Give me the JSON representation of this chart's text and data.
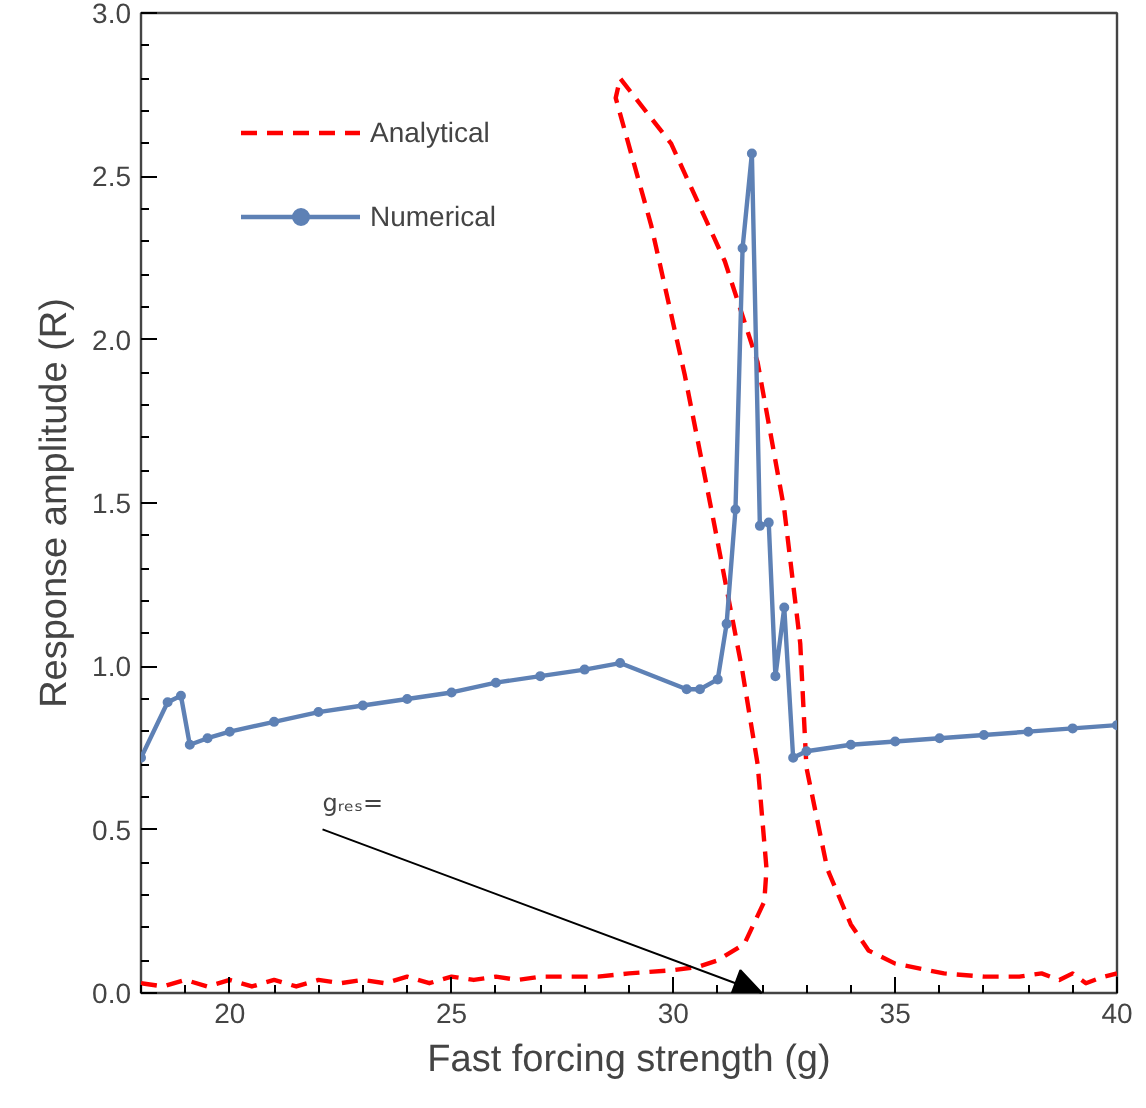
{
  "chart_data": {
    "type": "line",
    "xlabel": "Fast forcing strength (g)",
    "ylabel": "Response amplitude (R)",
    "xlim": [
      18,
      40
    ],
    "ylim": [
      0,
      3.0
    ],
    "xticks": [
      20,
      25,
      30,
      35,
      40
    ],
    "yticks": [
      {
        "value": 0,
        "label": "0.0"
      },
      0.5,
      {
        "value": 1,
        "label": "1.0"
      },
      1.5,
      {
        "value": 2,
        "label": "2.0"
      },
      2.5,
      {
        "value": 3,
        "label": "3.0"
      }
    ],
    "grid": false,
    "legend": "top left",
    "annotations": [
      "gᵣₑₛ="
    ],
    "series": [
      {
        "name": "Analytical",
        "color": "#ff0000",
        "line_style": "dashed",
        "marker": "none",
        "x": [
          18,
          18.5,
          19,
          19.5,
          20,
          20.5,
          21,
          21.5,
          22,
          22.5,
          23,
          23.5,
          24,
          24.5,
          25,
          25.5,
          26,
          26.5,
          27,
          27.5,
          28,
          28.3,
          29,
          30,
          30.56,
          31,
          31.6,
          32.05,
          32.1,
          31.9,
          31.55,
          30.9,
          30.26,
          29.5,
          28.7,
          28.8,
          29.95,
          31.16,
          31.9,
          32.5,
          32.86,
          33.0,
          33.47,
          34,
          34.4,
          35,
          36.1,
          37,
          37.8,
          38.3,
          38.7,
          39,
          39.3,
          39.7,
          40
        ],
        "values": [
          0.03,
          0.02,
          0.04,
          0.02,
          0.04,
          0.02,
          0.04,
          0.02,
          0.04,
          0.03,
          0.04,
          0.03,
          0.05,
          0.03,
          0.05,
          0.04,
          0.05,
          0.04,
          0.05,
          0.05,
          0.05,
          0.05,
          0.06,
          0.07,
          0.08,
          0.1,
          0.15,
          0.28,
          0.38,
          0.7,
          0.99,
          1.45,
          1.89,
          2.35,
          2.74,
          2.8,
          2.6,
          2.24,
          1.93,
          1.48,
          1.07,
          0.69,
          0.38,
          0.21,
          0.13,
          0.09,
          0.06,
          0.05,
          0.05,
          0.06,
          0.04,
          0.06,
          0.03,
          0.05,
          0.06
        ]
      },
      {
        "name": "Numerical",
        "color": "#5e81b5",
        "line_style": "solid",
        "marker": "circle",
        "x": [
          18,
          18.6,
          18.9,
          19.1,
          19.5,
          20,
          21,
          22,
          23,
          24,
          25,
          26,
          27,
          28,
          28.8,
          30.3,
          30.6,
          31.0,
          31.2,
          31.4,
          31.56,
          31.77,
          31.95,
          32.15,
          32.3,
          32.5,
          32.7,
          33,
          34,
          35,
          36,
          37,
          38,
          39,
          40
        ],
        "values": [
          0.72,
          0.89,
          0.91,
          0.76,
          0.78,
          0.8,
          0.83,
          0.86,
          0.88,
          0.9,
          0.92,
          0.95,
          0.97,
          0.99,
          1.01,
          0.93,
          0.93,
          0.96,
          1.13,
          1.48,
          2.28,
          2.57,
          1.43,
          1.44,
          0.97,
          1.18,
          0.72,
          0.74,
          0.76,
          0.77,
          0.78,
          0.79,
          0.8,
          0.81,
          0.82
        ]
      }
    ]
  }
}
